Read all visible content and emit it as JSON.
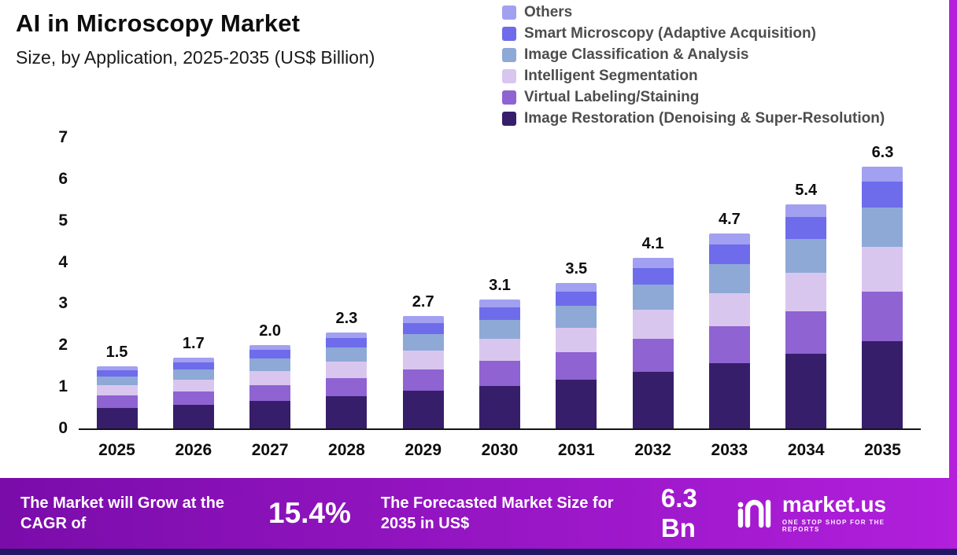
{
  "header": {
    "title": "AI in Microscopy Market",
    "subtitle": "Size, by Application, 2025-2035 (US$ Billion)"
  },
  "legend": [
    {
      "label": "Others",
      "color": "#a2a0f0"
    },
    {
      "label": "Smart Microscopy (Adaptive Acquisition)",
      "color": "#6e6ceb"
    },
    {
      "label": "Image Classification & Analysis",
      "color": "#8ea9d6"
    },
    {
      "label": "Intelligent Segmentation",
      "color": "#d9c6ef"
    },
    {
      "label": "Virtual Labeling/Staining",
      "color": "#8f63d2"
    },
    {
      "label": "Image Restoration (Denoising & Super-Resolution)",
      "color": "#371e6b"
    }
  ],
  "chart_data": {
    "type": "bar",
    "stacked": true,
    "title": "AI in Microscopy Market Size, by Application, 2025-2035 (US$ Billion)",
    "xlabel": "",
    "ylabel": "US$ Billion",
    "ylim": [
      0,
      7
    ],
    "yticks": [
      0,
      1,
      2,
      3,
      4,
      5,
      6,
      7
    ],
    "grid": false,
    "legend_position": "top-right",
    "categories": [
      "2025",
      "2026",
      "2027",
      "2028",
      "2029",
      "2030",
      "2031",
      "2032",
      "2033",
      "2034",
      "2035"
    ],
    "totals": [
      "1.5",
      "1.7",
      "2.0",
      "2.3",
      "2.7",
      "3.1",
      "3.5",
      "4.1",
      "4.7",
      "5.4",
      "6.3"
    ],
    "series": [
      {
        "name": "Image Restoration (Denoising & Super-Resolution)",
        "color": "#371e6b",
        "values": [
          0.5,
          0.57,
          0.67,
          0.77,
          0.9,
          1.03,
          1.17,
          1.37,
          1.57,
          1.8,
          2.1
        ]
      },
      {
        "name": "Virtual Labeling/Staining",
        "color": "#8f63d2",
        "values": [
          0.29,
          0.32,
          0.38,
          0.44,
          0.51,
          0.59,
          0.67,
          0.78,
          0.89,
          1.03,
          1.2
        ]
      },
      {
        "name": "Intelligent Segmentation",
        "color": "#d9c6ef",
        "values": [
          0.25,
          0.29,
          0.34,
          0.39,
          0.46,
          0.53,
          0.59,
          0.7,
          0.8,
          0.92,
          1.07
        ]
      },
      {
        "name": "Image Classification & Analysis",
        "color": "#8ea9d6",
        "values": [
          0.22,
          0.25,
          0.3,
          0.34,
          0.4,
          0.46,
          0.52,
          0.61,
          0.7,
          0.81,
          0.94
        ]
      },
      {
        "name": "Smart Microscopy (Adaptive Acquisition)",
        "color": "#6e6ceb",
        "values": [
          0.15,
          0.17,
          0.2,
          0.23,
          0.27,
          0.31,
          0.35,
          0.41,
          0.47,
          0.54,
          0.63
        ]
      },
      {
        "name": "Others",
        "color": "#a2a0f0",
        "values": [
          0.09,
          0.1,
          0.11,
          0.13,
          0.16,
          0.18,
          0.2,
          0.23,
          0.27,
          0.3,
          0.36
        ]
      }
    ]
  },
  "banner": {
    "cagr_label": "The Market will Grow at the CAGR of",
    "cagr_value": "15.4%",
    "forecast_label": "The Forecasted Market Size for 2035 in US$",
    "forecast_value": "6.3 Bn",
    "logo_text": "market.us",
    "logo_tagline": "ONE STOP SHOP FOR THE REPORTS"
  },
  "colors": {
    "banner_gradient_left": "#7a0caa",
    "banner_gradient_right": "#b11fdc",
    "right_strip": "#b51fd9",
    "bottom_strip": "#221665",
    "axis_text": "#111111",
    "legend_text": "#4d4d4d"
  }
}
